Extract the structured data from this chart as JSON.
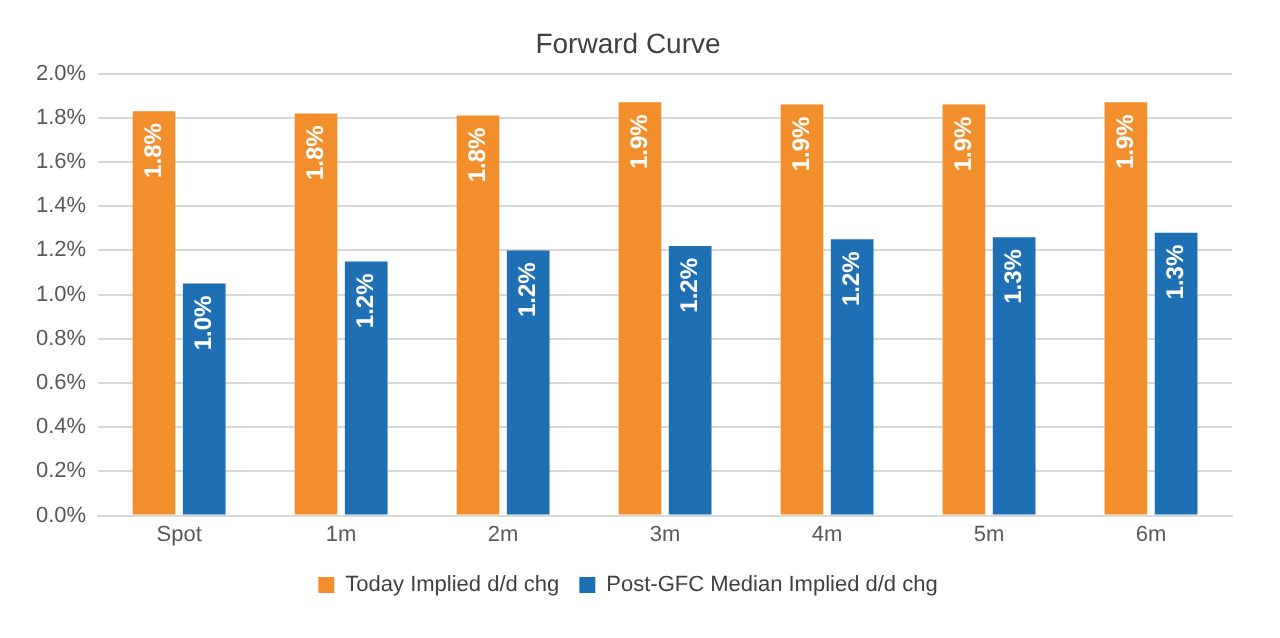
{
  "chart_data": {
    "type": "bar",
    "title": "Forward Curve",
    "categories": [
      "Spot",
      "1m",
      "2m",
      "3m",
      "4m",
      "5m",
      "6m"
    ],
    "series": [
      {
        "name": "Today Implied d/d chg",
        "color": "#f28e2b",
        "values": [
          1.83,
          1.82,
          1.81,
          1.87,
          1.86,
          1.86,
          1.87
        ],
        "value_labels": [
          "1.8%",
          "1.8%",
          "1.8%",
          "1.9%",
          "1.9%",
          "1.9%",
          "1.9%"
        ]
      },
      {
        "name": "Post-GFC Median Implied d/d chg",
        "color": "#1f6fb4",
        "values": [
          1.05,
          1.15,
          1.2,
          1.22,
          1.25,
          1.26,
          1.28
        ],
        "value_labels": [
          "1.0%",
          "1.2%",
          "1.2%",
          "1.2%",
          "1.2%",
          "1.3%",
          "1.3%"
        ]
      }
    ],
    "ylim": [
      0,
      2
    ],
    "yticks": [
      {
        "value": 0,
        "label": "0.0%"
      },
      {
        "value": 0.2,
        "label": "0.2%"
      },
      {
        "value": 0.4,
        "label": "0.4%"
      },
      {
        "value": 0.6,
        "label": "0.6%"
      },
      {
        "value": 0.8,
        "label": "0.8%"
      },
      {
        "value": 1,
        "label": "1.0%"
      },
      {
        "value": 1.2,
        "label": "1.2%"
      },
      {
        "value": 1.4,
        "label": "1.4%"
      },
      {
        "value": 1.6,
        "label": "1.6%"
      },
      {
        "value": 1.8,
        "label": "1.8%"
      },
      {
        "value": 2,
        "label": "2.0%"
      }
    ],
    "grid": "y",
    "legend": "bottom"
  }
}
